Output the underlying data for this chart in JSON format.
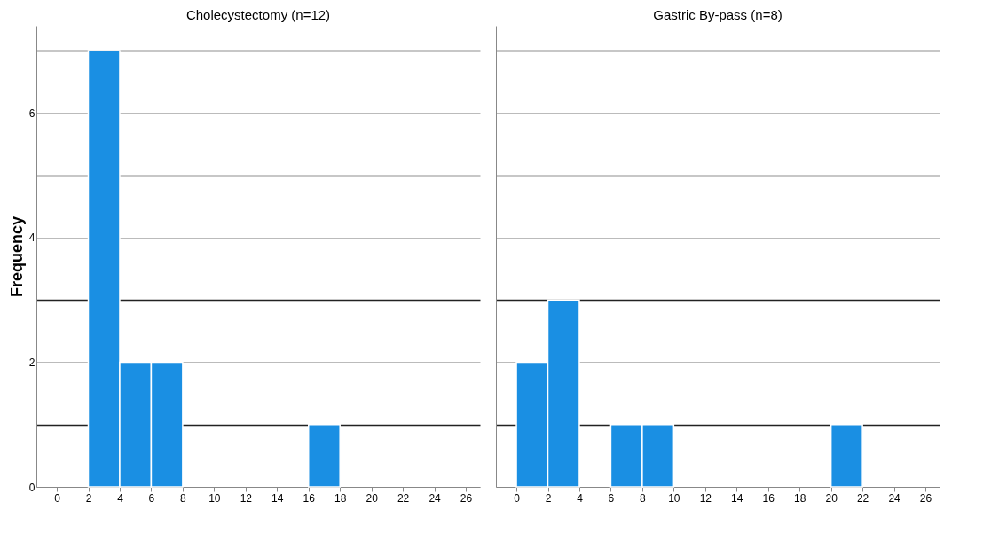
{
  "chart_data": [
    {
      "type": "histogram",
      "title": "Cholecystectomy (n=12)",
      "ylabel": "Frequency",
      "bins": [
        0,
        2,
        4,
        6,
        8,
        10,
        12,
        14,
        16,
        18,
        20,
        22,
        24,
        26
      ],
      "values": [
        0,
        7,
        2,
        2,
        0,
        0,
        0,
        0,
        1,
        0,
        0,
        0,
        0
      ],
      "color": "#1a8fe3",
      "xlim": [
        -1.3,
        26.9
      ],
      "xticks": [
        0,
        2,
        4,
        6,
        8,
        10,
        12,
        14,
        16,
        18,
        20,
        22,
        24,
        26
      ],
      "ylim": [
        0,
        7.4
      ],
      "yticks": [
        0,
        {
          "value": 1,
          "label": null
        },
        2,
        {
          "value": 3,
          "label": null
        },
        4,
        {
          "value": 5,
          "label": null
        },
        6,
        {
          "value": 7,
          "label": null
        }
      ],
      "grid": "y"
    },
    {
      "type": "histogram",
      "title": "Gastric By-pass (n=8)",
      "bins": [
        0,
        2,
        4,
        6,
        8,
        10,
        12,
        14,
        16,
        18,
        20,
        22,
        24,
        26
      ],
      "values": [
        2,
        3,
        0,
        1,
        1,
        0,
        0,
        0,
        0,
        0,
        1,
        0,
        0
      ],
      "color": "#1a8fe3",
      "xlim": [
        -1.3,
        26.9
      ],
      "xticks": [
        0,
        2,
        4,
        6,
        8,
        10,
        12,
        14,
        16,
        18,
        20,
        22,
        24,
        26
      ],
      "ylim": [
        0,
        7.4
      ],
      "yticks": [
        0,
        {
          "value": 1,
          "label": null
        },
        2,
        {
          "value": 3,
          "label": null
        },
        4,
        {
          "value": 5,
          "label": null
        },
        6,
        {
          "value": 7,
          "label": null
        }
      ],
      "grid": "y",
      "tick_labels": "x"
    }
  ]
}
